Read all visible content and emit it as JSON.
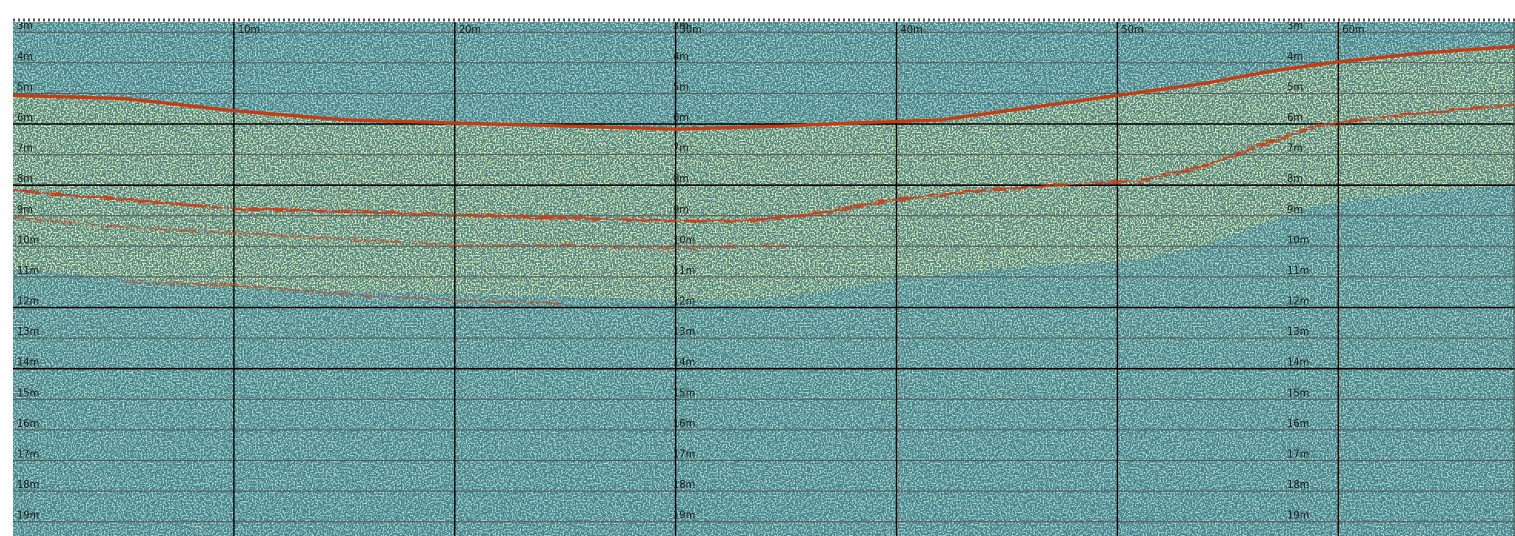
{
  "chart_data": {
    "type": "heatmap",
    "title": "",
    "xlabel": "",
    "ylabel": "",
    "distance_ticks": [
      "0m",
      "10m",
      "20m",
      "30m",
      "40m",
      "50m",
      "60m"
    ],
    "distance_range_m": [
      0,
      68
    ],
    "depth_ticks": [
      "3m",
      "4m",
      "5m",
      "6m",
      "7m",
      "8m",
      "9m",
      "10m",
      "11m",
      "12m",
      "13m",
      "14m",
      "15m",
      "16m",
      "17m",
      "18m",
      "19m"
    ],
    "depth_range_m": [
      2.7,
      19.5
    ],
    "depth_label_columns_m": [
      0,
      29.7,
      57.5
    ],
    "major_depth_lines_m": [
      6,
      8,
      12,
      14
    ],
    "grid": true,
    "reflectors": [
      {
        "kind": "primary",
        "points": [
          [
            0,
            5.1
          ],
          [
            5,
            5.2
          ],
          [
            10,
            5.6
          ],
          [
            15,
            5.9
          ],
          [
            20,
            6.0
          ],
          [
            25,
            6.1
          ],
          [
            30,
            6.2
          ],
          [
            35,
            6.1
          ],
          [
            38,
            6.0
          ],
          [
            42,
            5.9
          ],
          [
            46,
            5.5
          ],
          [
            50,
            5.1
          ],
          [
            54,
            4.7
          ],
          [
            57,
            4.3
          ],
          [
            60,
            4.0
          ],
          [
            64,
            3.7
          ],
          [
            68,
            3.5
          ]
        ]
      },
      {
        "kind": "secondary",
        "points": [
          [
            0,
            8.2
          ],
          [
            5,
            8.5
          ],
          [
            10,
            8.8
          ],
          [
            15,
            8.9
          ],
          [
            20,
            9.0
          ],
          [
            25,
            9.1
          ],
          [
            30,
            9.2
          ],
          [
            33,
            9.2
          ],
          [
            36,
            9.0
          ],
          [
            40,
            8.5
          ],
          [
            44,
            8.2
          ],
          [
            48,
            8.0
          ],
          [
            51,
            7.9
          ],
          [
            54,
            7.4
          ],
          [
            57,
            6.6
          ],
          [
            59,
            6.1
          ],
          [
            62,
            5.8
          ],
          [
            65,
            5.6
          ],
          [
            68,
            5.4
          ]
        ]
      },
      {
        "kind": "faint",
        "points": [
          [
            0,
            9.1
          ],
          [
            5,
            9.4
          ],
          [
            10,
            9.6
          ],
          [
            15,
            9.8
          ],
          [
            20,
            10.0
          ],
          [
            25,
            10.0
          ],
          [
            30,
            10.1
          ],
          [
            35,
            10.0
          ]
        ]
      },
      {
        "kind": "faint",
        "points": [
          [
            5,
            11.2
          ],
          [
            10,
            11.3
          ],
          [
            15,
            11.6
          ],
          [
            20,
            11.8
          ],
          [
            25,
            11.9
          ]
        ]
      }
    ],
    "colors": {
      "background_water": "#6fc4c4",
      "sediment_band": "#e7f08a",
      "reflector": "#c83a12",
      "speckle_dark": "#11333a",
      "grid_major": "#000000",
      "grid_minor": "#555555"
    }
  }
}
